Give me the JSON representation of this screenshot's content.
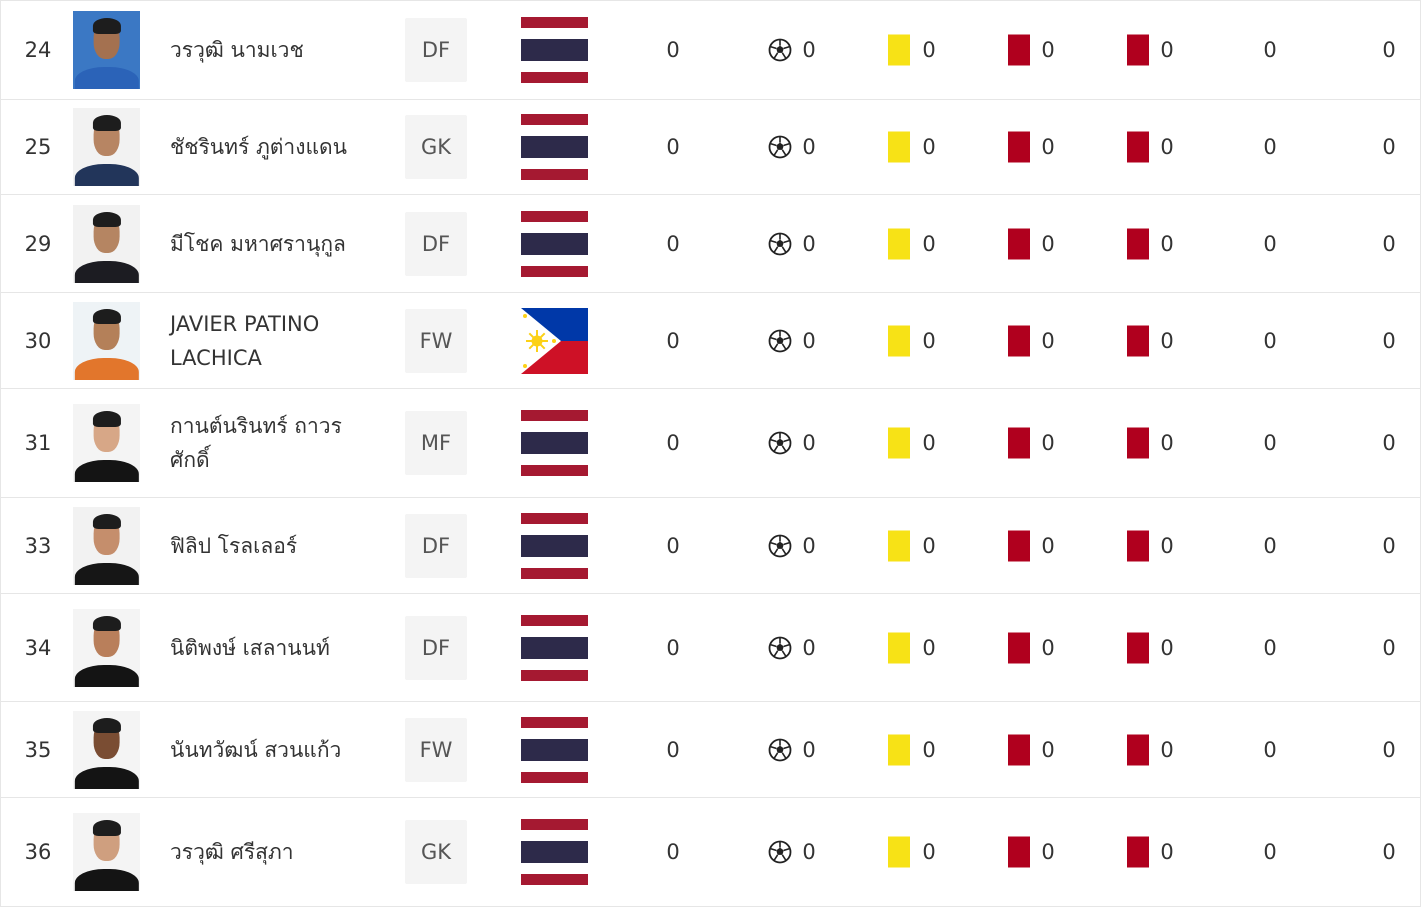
{
  "colors": {
    "yellow_card": "#f7e216",
    "red_card": "#b0001e",
    "border": "#e6e6e6",
    "position_bg": "#f4f4f4"
  },
  "icons": {
    "goal": "soccer-ball-icon",
    "yellow_card": "yellow-card-icon",
    "red_card": "red-card-icon",
    "second_yellow": "second-yellow-red-card-icon"
  },
  "players": [
    {
      "number": "24",
      "name": "วรวุฒิ นามเวช",
      "position": "DF",
      "flag": "thailand",
      "apps": "0",
      "goals": "0",
      "yellow": "0",
      "red": "0",
      "second_yellow": "0",
      "stat6": "0",
      "stat7": "0",
      "photo_bg": "#3b78c4",
      "shirt": "#2b63b8",
      "skin": "#a47150"
    },
    {
      "number": "25",
      "name": "ชัชรินทร์ ภูต่างแดน",
      "position": "GK",
      "flag": "thailand",
      "apps": "0",
      "goals": "0",
      "yellow": "0",
      "red": "0",
      "second_yellow": "0",
      "stat6": "0",
      "stat7": "0",
      "photo_bg": "#f2f2f2",
      "shirt": "#22355a",
      "skin": "#b78563"
    },
    {
      "number": "29",
      "name": "มีโชค มหาศรานุกูล",
      "position": "DF",
      "flag": "thailand",
      "apps": "0",
      "goals": "0",
      "yellow": "0",
      "red": "0",
      "second_yellow": "0",
      "stat6": "0",
      "stat7": "0",
      "photo_bg": "#f2f2f2",
      "shirt": "#1c1c22",
      "skin": "#b58562"
    },
    {
      "number": "30",
      "name": "JAVIER PATINO LACHICA",
      "position": "FW",
      "flag": "philippines",
      "apps": "0",
      "goals": "0",
      "yellow": "0",
      "red": "0",
      "second_yellow": "0",
      "stat6": "0",
      "stat7": "0",
      "photo_bg": "#eef3f6",
      "shirt": "#e2762c",
      "skin": "#b48059"
    },
    {
      "number": "31",
      "name": "กานต์นรินทร์ ถาวรศักดิ์",
      "position": "MF",
      "flag": "thailand",
      "apps": "0",
      "goals": "0",
      "yellow": "0",
      "red": "0",
      "second_yellow": "0",
      "stat6": "0",
      "stat7": "0",
      "photo_bg": "#f4f4f4",
      "shirt": "#141414",
      "skin": "#d7a787"
    },
    {
      "number": "33",
      "name": "ฟิลิป โรลเลอร์",
      "position": "DF",
      "flag": "thailand",
      "apps": "0",
      "goals": "0",
      "yellow": "0",
      "red": "0",
      "second_yellow": "0",
      "stat6": "0",
      "stat7": "0",
      "photo_bg": "#f2f2f2",
      "shirt": "#161616",
      "skin": "#c58e6c"
    },
    {
      "number": "34",
      "name": "นิติพงษ์ เสลานนท์",
      "position": "DF",
      "flag": "thailand",
      "apps": "0",
      "goals": "0",
      "yellow": "0",
      "red": "0",
      "second_yellow": "0",
      "stat6": "0",
      "stat7": "0",
      "photo_bg": "#f4f4f4",
      "shirt": "#141414",
      "skin": "#b97f5b"
    },
    {
      "number": "35",
      "name": "นันทวัฒน์ สวนแก้ว",
      "position": "FW",
      "flag": "thailand",
      "apps": "0",
      "goals": "0",
      "yellow": "0",
      "red": "0",
      "second_yellow": "0",
      "stat6": "0",
      "stat7": "0",
      "photo_bg": "#f4f4f4",
      "shirt": "#141414",
      "skin": "#7a4d33"
    },
    {
      "number": "36",
      "name": "วรวุฒิ ศรีสุภา",
      "position": "GK",
      "flag": "thailand",
      "apps": "0",
      "goals": "0",
      "yellow": "0",
      "red": "0",
      "second_yellow": "0",
      "stat6": "0",
      "stat7": "0",
      "photo_bg": "#f4f4f4",
      "shirt": "#141414",
      "skin": "#cf9f7f"
    }
  ]
}
